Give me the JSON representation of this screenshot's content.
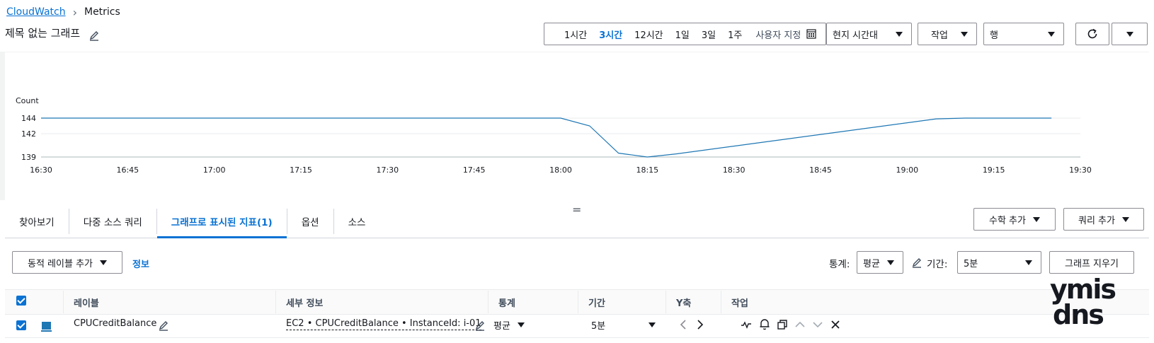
{
  "breadcrumb": {
    "root": "CloudWatch",
    "current": "Metrics"
  },
  "graph": {
    "title": "제목 없는 그래프"
  },
  "time_range": {
    "options": [
      "1시간",
      "3시간",
      "12시간",
      "1일",
      "3일",
      "1주"
    ],
    "active": "3시간",
    "custom": "사용자 지정",
    "timezone": "현지 시간대"
  },
  "toolbar": {
    "actions": "작업",
    "view": "행"
  },
  "chart_data": {
    "type": "line",
    "ylabel": "Count",
    "y_ticks": [
      139,
      142,
      144
    ],
    "ylim": [
      139,
      144
    ],
    "x_ticks": [
      "16:30",
      "16:45",
      "17:00",
      "17:15",
      "17:30",
      "17:45",
      "18:00",
      "18:15",
      "18:30",
      "18:45",
      "19:00",
      "19:15",
      "19:30"
    ],
    "series": [
      {
        "x": [
          "16:30",
          "16:35",
          "16:40",
          "16:45",
          "16:50",
          "16:55",
          "17:00",
          "17:05",
          "17:10",
          "17:15",
          "17:20",
          "17:25",
          "17:30",
          "17:35",
          "17:40",
          "17:45",
          "17:50",
          "17:55",
          "18:00",
          "18:05",
          "18:10",
          "18:15",
          "18:20",
          "18:25",
          "18:30",
          "18:35",
          "18:40",
          "18:45",
          "18:50",
          "18:55",
          "19:00",
          "19:05",
          "19:10",
          "19:15",
          "19:20",
          "19:25"
        ],
        "values": [
          144,
          144,
          144,
          144,
          144,
          144,
          144,
          144,
          144,
          144,
          144,
          144,
          144,
          144,
          144,
          144,
          144,
          144,
          144,
          143,
          139.5,
          139,
          139.4,
          139.9,
          140.4,
          140.9,
          141.4,
          141.9,
          142.4,
          142.9,
          143.4,
          143.9,
          144,
          144,
          144,
          144
        ],
        "color": "#1f77b4"
      }
    ],
    "grid": true,
    "legend": "none"
  },
  "tabs": [
    {
      "label": "찾아보기"
    },
    {
      "label": "다중 소스 쿼리"
    },
    {
      "label": "그래프로 표시된 지표(1)",
      "active": true
    },
    {
      "label": "옵션"
    },
    {
      "label": "소스"
    }
  ],
  "buttons": {
    "add_math": "수학 추가",
    "add_query": "쿼리 추가",
    "dynamic_label": "동적 레이블 추가",
    "info": "정보",
    "clear_graph": "그래프 지우기"
  },
  "controls": {
    "stat_label": "통계:",
    "stat_value": "평균",
    "period_label": "기간:",
    "period_value": "5분"
  },
  "table": {
    "headers": [
      "레이블",
      "세부 정보",
      "통계",
      "기간",
      "Y축",
      "작업"
    ],
    "rows": [
      {
        "label": "CPUCreditBalance",
        "details": "EC2 • CPUCreditBalance • InstanceId: i-01",
        "stat": "평균",
        "period": "5분",
        "color": "#1f77b4"
      }
    ]
  },
  "watermark": {
    "line1": "ymis",
    "line2": "dns"
  }
}
